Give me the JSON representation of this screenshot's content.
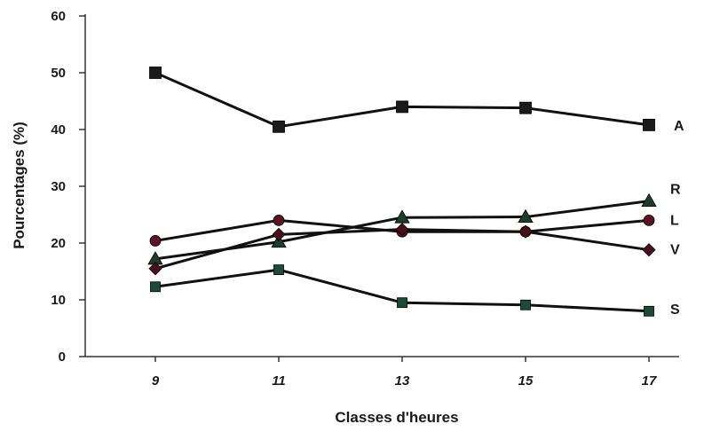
{
  "chart_data": {
    "type": "line",
    "title": "",
    "xlabel": "Classes d'heures",
    "ylabel": "Pourcentages (%)",
    "categories": [
      "9",
      "11",
      "13",
      "15",
      "17"
    ],
    "ylim": [
      0,
      60
    ],
    "yticks": [
      0,
      10,
      20,
      30,
      40,
      50,
      60
    ],
    "grid": false,
    "legend": "none",
    "series": [
      {
        "name": "A",
        "marker": "square",
        "marker_color": "#1a1a1a",
        "values": [
          50,
          40.5,
          44,
          43.8,
          40.8
        ]
      },
      {
        "name": "R",
        "marker": "triangle",
        "marker_color": "#1c3d2e",
        "values": [
          17.2,
          20.2,
          24.5,
          24.6,
          27.4
        ]
      },
      {
        "name": "L",
        "marker": "circle",
        "marker_color": "#5a1224",
        "values": [
          20.4,
          24,
          22,
          22,
          24
        ]
      },
      {
        "name": "V",
        "marker": "diamond",
        "marker_color": "#4a0e1c",
        "values": [
          15.5,
          21.5,
          22.4,
          22,
          18.8
        ]
      },
      {
        "name": "S",
        "marker": "square",
        "marker_color": "#1f4a3a",
        "values": [
          12.3,
          15.3,
          9.5,
          9.1,
          8
        ]
      }
    ]
  }
}
